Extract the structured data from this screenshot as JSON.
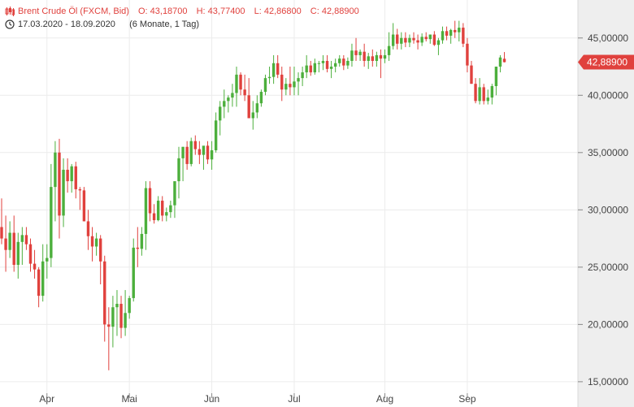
{
  "header": {
    "instrument": "Brent Crude Öl (FXCM, Bid)",
    "open": "O: 43,18700",
    "high": "H: 43,77400",
    "low": "L: 42,86800",
    "close": "C: 42,88900",
    "date_range": "17.03.2020 - 18.09.2020",
    "period": "(6 Monate, 1 Tag)",
    "candle_icon": "candlestick-icon",
    "clock_icon": "clock-icon"
  },
  "colors": {
    "up": "#4caf3c",
    "down": "#e0413d",
    "grid": "#ececec",
    "axis_bg": "#eeeeee",
    "last_price_bg": "#e0413d"
  },
  "last_price_label": "42,88900",
  "chart_data": {
    "type": "candlestick",
    "y_range": [
      14000,
      46500
    ],
    "y_ticks": [
      15000,
      20000,
      25000,
      30000,
      35000,
      40000,
      45000
    ],
    "y_tick_labels": [
      "15,00000",
      "20,00000",
      "25,00000",
      "30,00000",
      "35,00000",
      "40,00000",
      "45,00000"
    ],
    "x_tick_labels": [
      {
        "label": "Apr",
        "index": 11
      },
      {
        "label": "Mai",
        "index": 31
      },
      {
        "label": "Jun",
        "index": 51
      },
      {
        "label": "Jul",
        "index": 71
      },
      {
        "label": "Aug",
        "index": 93
      },
      {
        "label": "Sep",
        "index": 113
      }
    ],
    "last_price": 42889,
    "grid": true,
    "ohlc": [
      [
        28500,
        31000,
        27000,
        27500
      ],
      [
        27500,
        29500,
        24600,
        26500
      ],
      [
        26500,
        29000,
        25800,
        28000
      ],
      [
        28000,
        29500,
        24600,
        25200
      ],
      [
        25200,
        28000,
        24000,
        27200
      ],
      [
        27200,
        28500,
        25200,
        27800
      ],
      [
        27800,
        28500,
        26500,
        27000
      ],
      [
        27000,
        27500,
        24600,
        25300
      ],
      [
        25300,
        26500,
        24000,
        24800
      ],
      [
        24800,
        25000,
        21500,
        22500
      ],
      [
        22500,
        27000,
        22000,
        25500
      ],
      [
        25500,
        27000,
        24000,
        25800
      ],
      [
        25800,
        34000,
        25000,
        32000
      ],
      [
        32000,
        36000,
        29000,
        35000
      ],
      [
        35000,
        36200,
        27500,
        29500
      ],
      [
        29500,
        34500,
        28500,
        33500
      ],
      [
        33500,
        34500,
        31500,
        32500
      ],
      [
        32500,
        34000,
        31500,
        33800
      ],
      [
        33800,
        34200,
        31000,
        31800
      ],
      [
        31800,
        32000,
        30000,
        31700
      ],
      [
        31700,
        32000,
        29000,
        29000
      ],
      [
        29000,
        30000,
        26500,
        27700
      ],
      [
        27700,
        28500,
        25500,
        26800
      ],
      [
        26800,
        28000,
        26000,
        27500
      ],
      [
        27500,
        27800,
        23500,
        25500
      ],
      [
        25500,
        26000,
        18500,
        20000
      ],
      [
        20000,
        21500,
        16000,
        19800
      ],
      [
        19800,
        22500,
        18000,
        21500
      ],
      [
        21500,
        23000,
        19000,
        21800
      ],
      [
        21800,
        22500,
        18800,
        19700
      ],
      [
        19700,
        23000,
        19000,
        21000
      ],
      [
        21000,
        22500,
        20500,
        22300
      ],
      [
        22300,
        27500,
        22000,
        26700
      ],
      [
        26700,
        28500,
        25000,
        26600
      ],
      [
        26600,
        28500,
        26000,
        27900
      ],
      [
        27900,
        32500,
        26500,
        31900
      ],
      [
        31900,
        32500,
        29000,
        29700
      ],
      [
        29700,
        30500,
        28800,
        29100
      ],
      [
        29100,
        31200,
        29000,
        30800
      ],
      [
        30800,
        31200,
        29000,
        29500
      ],
      [
        29500,
        30200,
        29000,
        29800
      ],
      [
        29800,
        30800,
        29300,
        30400
      ],
      [
        30400,
        32500,
        29300,
        32500
      ],
      [
        32500,
        35500,
        31000,
        34500
      ],
      [
        34500,
        35500,
        32500,
        35500
      ],
      [
        35500,
        36000,
        33500,
        34000
      ],
      [
        34000,
        36300,
        33800,
        36000
      ],
      [
        36000,
        36500,
        34800,
        35300
      ],
      [
        35300,
        36000,
        34000,
        34800
      ],
      [
        34800,
        35500,
        33500,
        35600
      ],
      [
        35600,
        36000,
        34000,
        34400
      ],
      [
        34400,
        36000,
        33500,
        35200
      ],
      [
        35200,
        38500,
        35000,
        37800
      ],
      [
        37800,
        39500,
        36500,
        39000
      ],
      [
        39000,
        40500,
        38000,
        39500
      ],
      [
        39500,
        40000,
        38500,
        39800
      ],
      [
        39800,
        41000,
        39000,
        40200
      ],
      [
        40200,
        42500,
        39000,
        41800
      ],
      [
        41800,
        42000,
        40000,
        40500
      ],
      [
        40500,
        41800,
        39500,
        40000
      ],
      [
        40000,
        41500,
        38000,
        38000
      ],
      [
        38000,
        39500,
        37000,
        38500
      ],
      [
        38500,
        40000,
        38000,
        39300
      ],
      [
        39300,
        40500,
        39000,
        40300
      ],
      [
        40300,
        41800,
        40000,
        41500
      ],
      [
        41500,
        42500,
        41000,
        41600
      ],
      [
        41600,
        43500,
        41000,
        42800
      ],
      [
        42800,
        43500,
        41500,
        41800
      ],
      [
        41800,
        42500,
        39500,
        40500
      ],
      [
        40500,
        41500,
        40000,
        41000
      ],
      [
        41000,
        42500,
        40000,
        40700
      ],
      [
        40700,
        42500,
        40000,
        41200
      ],
      [
        41200,
        42000,
        40000,
        41500
      ],
      [
        41500,
        42500,
        40800,
        42000
      ],
      [
        42000,
        43500,
        41500,
        42600
      ],
      [
        42600,
        43000,
        41700,
        42000
      ],
      [
        42000,
        43200,
        41800,
        42800
      ],
      [
        42800,
        43000,
        42000,
        42800
      ],
      [
        42800,
        43500,
        42200,
        43000
      ],
      [
        43000,
        43500,
        42000,
        42300
      ],
      [
        42300,
        43000,
        41500,
        42500
      ],
      [
        42500,
        43200,
        42000,
        42800
      ],
      [
        42800,
        43500,
        42500,
        43200
      ],
      [
        43200,
        43500,
        42200,
        42600
      ],
      [
        42600,
        43300,
        42300,
        43000
      ],
      [
        43000,
        44500,
        42500,
        43900
      ],
      [
        43900,
        45000,
        43000,
        43500
      ],
      [
        43500,
        44000,
        43000,
        43800
      ],
      [
        43800,
        44500,
        42500,
        43000
      ],
      [
        43000,
        43700,
        42300,
        43400
      ],
      [
        43400,
        44000,
        42500,
        43000
      ],
      [
        43000,
        43800,
        42500,
        43500
      ],
      [
        43500,
        44000,
        41500,
        43200
      ],
      [
        43200,
        44000,
        42800,
        43500
      ],
      [
        43500,
        45500,
        43000,
        44300
      ],
      [
        44300,
        46300,
        44000,
        45300
      ],
      [
        45300,
        45800,
        44000,
        44500
      ],
      [
        44500,
        45500,
        44000,
        45000
      ],
      [
        45000,
        45500,
        44200,
        44600
      ],
      [
        44600,
        45300,
        44200,
        45000
      ],
      [
        45000,
        45500,
        44500,
        44800
      ],
      [
        44800,
        45300,
        44000,
        44600
      ],
      [
        44600,
        45400,
        44300,
        45100
      ],
      [
        45100,
        45500,
        44700,
        44900
      ],
      [
        44900,
        45300,
        44500,
        45300
      ],
      [
        45300,
        45600,
        44300,
        44400
      ],
      [
        44400,
        45000,
        43500,
        44800
      ],
      [
        44800,
        46000,
        44500,
        45600
      ],
      [
        45600,
        46000,
        44800,
        45200
      ],
      [
        45200,
        45800,
        44500,
        45700
      ],
      [
        45700,
        46500,
        45000,
        45500
      ],
      [
        45500,
        46500,
        44700,
        45900
      ],
      [
        45900,
        46300,
        44200,
        44500
      ],
      [
        44500,
        45000,
        42000,
        42600
      ],
      [
        42600,
        43000,
        41000,
        41000
      ],
      [
        41000,
        41500,
        39300,
        39500
      ],
      [
        39500,
        41500,
        39200,
        40700
      ],
      [
        40700,
        41000,
        39200,
        39500
      ],
      [
        39500,
        40500,
        39200,
        39800
      ],
      [
        39800,
        41000,
        39200,
        40800
      ],
      [
        40800,
        42500,
        40000,
        42500
      ],
      [
        42500,
        43500,
        42000,
        43300
      ],
      [
        43187,
        43774,
        42868,
        42889
      ]
    ]
  }
}
